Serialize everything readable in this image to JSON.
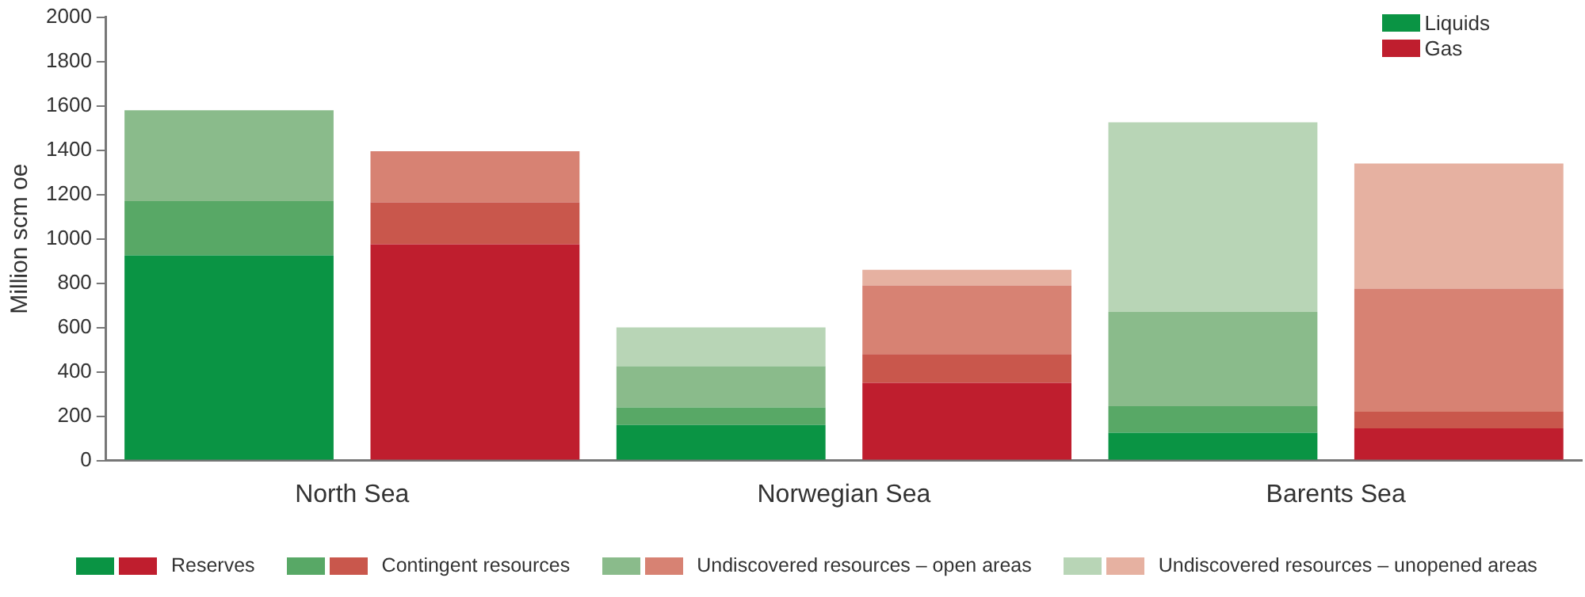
{
  "chart_data": {
    "type": "bar",
    "ylabel": "Million scm oe",
    "categories": [
      "North Sea",
      null,
      "Norwegian Sea",
      null,
      "Barents Sea",
      null
    ],
    "stacked": true,
    "ylim": [
      0,
      2000
    ],
    "yticks": [
      0,
      200,
      400,
      600,
      800,
      1000,
      1200,
      1400,
      1600,
      1800,
      2000
    ],
    "grid": false,
    "legend": "bottom",
    "annotations": [
      "Liquids",
      "Gas"
    ],
    "series": [
      {
        "name": "Reserves",
        "colors": [
          "#0a9444",
          "#bf1e2e",
          "#0a9444",
          "#bf1e2e",
          "#0a9444",
          "#bf1e2e"
        ],
        "values": [
          925,
          975,
          160,
          350,
          125,
          145
        ]
      },
      {
        "name": "Contingent resources",
        "colors": [
          "#58a866",
          "#c9574c",
          "#58a866",
          "#c9574c",
          "#58a866",
          "#c9574c"
        ],
        "values": [
          245,
          190,
          80,
          130,
          120,
          75
        ]
      },
      {
        "name": "Undiscovered resources – open areas",
        "colors": [
          "#8abb8b",
          "#d78273",
          "#8abb8b",
          "#d78273",
          "#8abb8b",
          "#d78273"
        ],
        "values": [
          410,
          230,
          185,
          310,
          425,
          555
        ]
      },
      {
        "name": "Undiscovered resources – unopened areas",
        "colors": [
          "#b8d5b6",
          "#e6b1a1",
          "#b8d5b6",
          "#e6b1a1",
          "#b8d5b6",
          "#e6b1a1"
        ],
        "values": [
          null,
          null,
          175,
          70,
          855,
          565
        ]
      }
    ]
  }
}
